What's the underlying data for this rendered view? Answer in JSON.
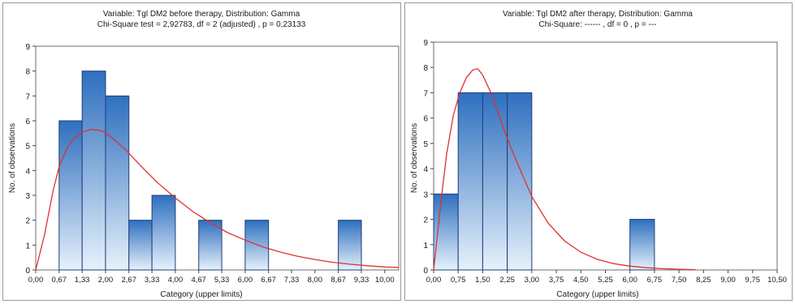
{
  "colors": {
    "bar_top": "#2e6fbf",
    "bar_bottom": "#e6f1fb",
    "bar_stroke": "#1f3e78",
    "curve": "#e03030"
  },
  "chart_data": [
    {
      "type": "bar",
      "title": "Variable: Tgl DM2 before therapy, Distribution: Gamma",
      "subtitle": "Chi-Square test = 2,92783, df = 2 (adjusted) , p = 0,23133",
      "xlabel": "Category (upper limits)",
      "ylabel": "No. of observations",
      "xlim": [
        0,
        10.4
      ],
      "ylim": [
        0,
        9
      ],
      "y_ticks": [
        "0",
        "1",
        "2",
        "3",
        "4",
        "5",
        "6",
        "7",
        "8",
        "9"
      ],
      "x_ticks": [
        0,
        0.67,
        1.33,
        2,
        2.67,
        3.33,
        4,
        4.67,
        5.33,
        6,
        6.67,
        7.33,
        8,
        8.67,
        9.33,
        10
      ],
      "x_tick_labels": [
        "0,00",
        "0,67",
        "1,33",
        "2,00",
        "2,67",
        "3,33",
        "4,00",
        "4,67",
        "5,33",
        "6,00",
        "6,67",
        "7,33",
        "8,00",
        "8,67",
        "9,33",
        "10,00"
      ],
      "bins": [
        {
          "from": 0.67,
          "to": 1.33,
          "value": 6
        },
        {
          "from": 1.33,
          "to": 2.0,
          "value": 8
        },
        {
          "from": 2.0,
          "to": 2.67,
          "value": 7
        },
        {
          "from": 2.67,
          "to": 3.33,
          "value": 2
        },
        {
          "from": 3.33,
          "to": 4.0,
          "value": 3
        },
        {
          "from": 4.67,
          "to": 5.33,
          "value": 2
        },
        {
          "from": 6.0,
          "to": 6.67,
          "value": 2
        },
        {
          "from": 8.67,
          "to": 9.33,
          "value": 2
        }
      ],
      "curve": {
        "x": [
          0,
          0.25,
          0.5,
          0.67,
          0.9,
          1.1,
          1.33,
          1.6,
          1.9,
          2.2,
          2.6,
          3.0,
          3.5,
          4.0,
          4.5,
          5.0,
          5.5,
          6.0,
          6.5,
          7.0,
          7.5,
          8.0,
          8.5,
          9.0,
          9.5,
          10.0,
          10.4
        ],
        "y": [
          0,
          1.4,
          3.2,
          4.15,
          4.9,
          5.3,
          5.55,
          5.65,
          5.6,
          5.3,
          4.8,
          4.2,
          3.5,
          2.9,
          2.35,
          1.9,
          1.5,
          1.2,
          0.93,
          0.72,
          0.55,
          0.42,
          0.31,
          0.23,
          0.17,
          0.12,
          0.1
        ]
      }
    },
    {
      "type": "bar",
      "title": "Variable: Tgl DM2 after therapy, Distribution: Gamma",
      "subtitle": "Chi-Square: ------ , df = 0 , p = ---",
      "xlabel": "Category (upper limits)",
      "ylabel": "No. of observations",
      "xlim": [
        0,
        10.5
      ],
      "ylim": [
        0,
        9
      ],
      "y_ticks": [
        "0",
        "1",
        "2",
        "3",
        "4",
        "5",
        "6",
        "7",
        "8",
        "9"
      ],
      "x_ticks": [
        0,
        0.75,
        1.5,
        2.25,
        3,
        3.75,
        4.5,
        5.25,
        6,
        6.75,
        7.5,
        8.25,
        9,
        9.75,
        10.5
      ],
      "x_tick_labels": [
        "0,00",
        "0,75",
        "1,50",
        "2,25",
        "3,00",
        "3,75",
        "4,50",
        "5,25",
        "6,00",
        "6,75",
        "7,50",
        "8,25",
        "9,00",
        "9,75",
        "10,50"
      ],
      "bins": [
        {
          "from": 0.0,
          "to": 0.75,
          "value": 3
        },
        {
          "from": 0.75,
          "to": 1.5,
          "value": 7
        },
        {
          "from": 1.5,
          "to": 2.25,
          "value": 7
        },
        {
          "from": 2.25,
          "to": 3.0,
          "value": 7
        },
        {
          "from": 6.0,
          "to": 6.75,
          "value": 2
        }
      ],
      "curve": {
        "x": [
          0,
          0.1,
          0.25,
          0.4,
          0.6,
          0.8,
          1.0,
          1.2,
          1.35,
          1.5,
          1.75,
          2.0,
          2.25,
          2.5,
          3.0,
          3.5,
          4.0,
          4.5,
          5.0,
          5.5,
          6.0,
          6.5,
          7.0,
          7.5,
          8.0
        ],
        "y": [
          0,
          1.2,
          3.0,
          4.6,
          6.1,
          7.0,
          7.6,
          7.9,
          7.95,
          7.7,
          7.0,
          6.1,
          5.2,
          4.4,
          2.9,
          1.85,
          1.15,
          0.7,
          0.42,
          0.25,
          0.15,
          0.09,
          0.05,
          0.03,
          0.01
        ]
      }
    }
  ]
}
